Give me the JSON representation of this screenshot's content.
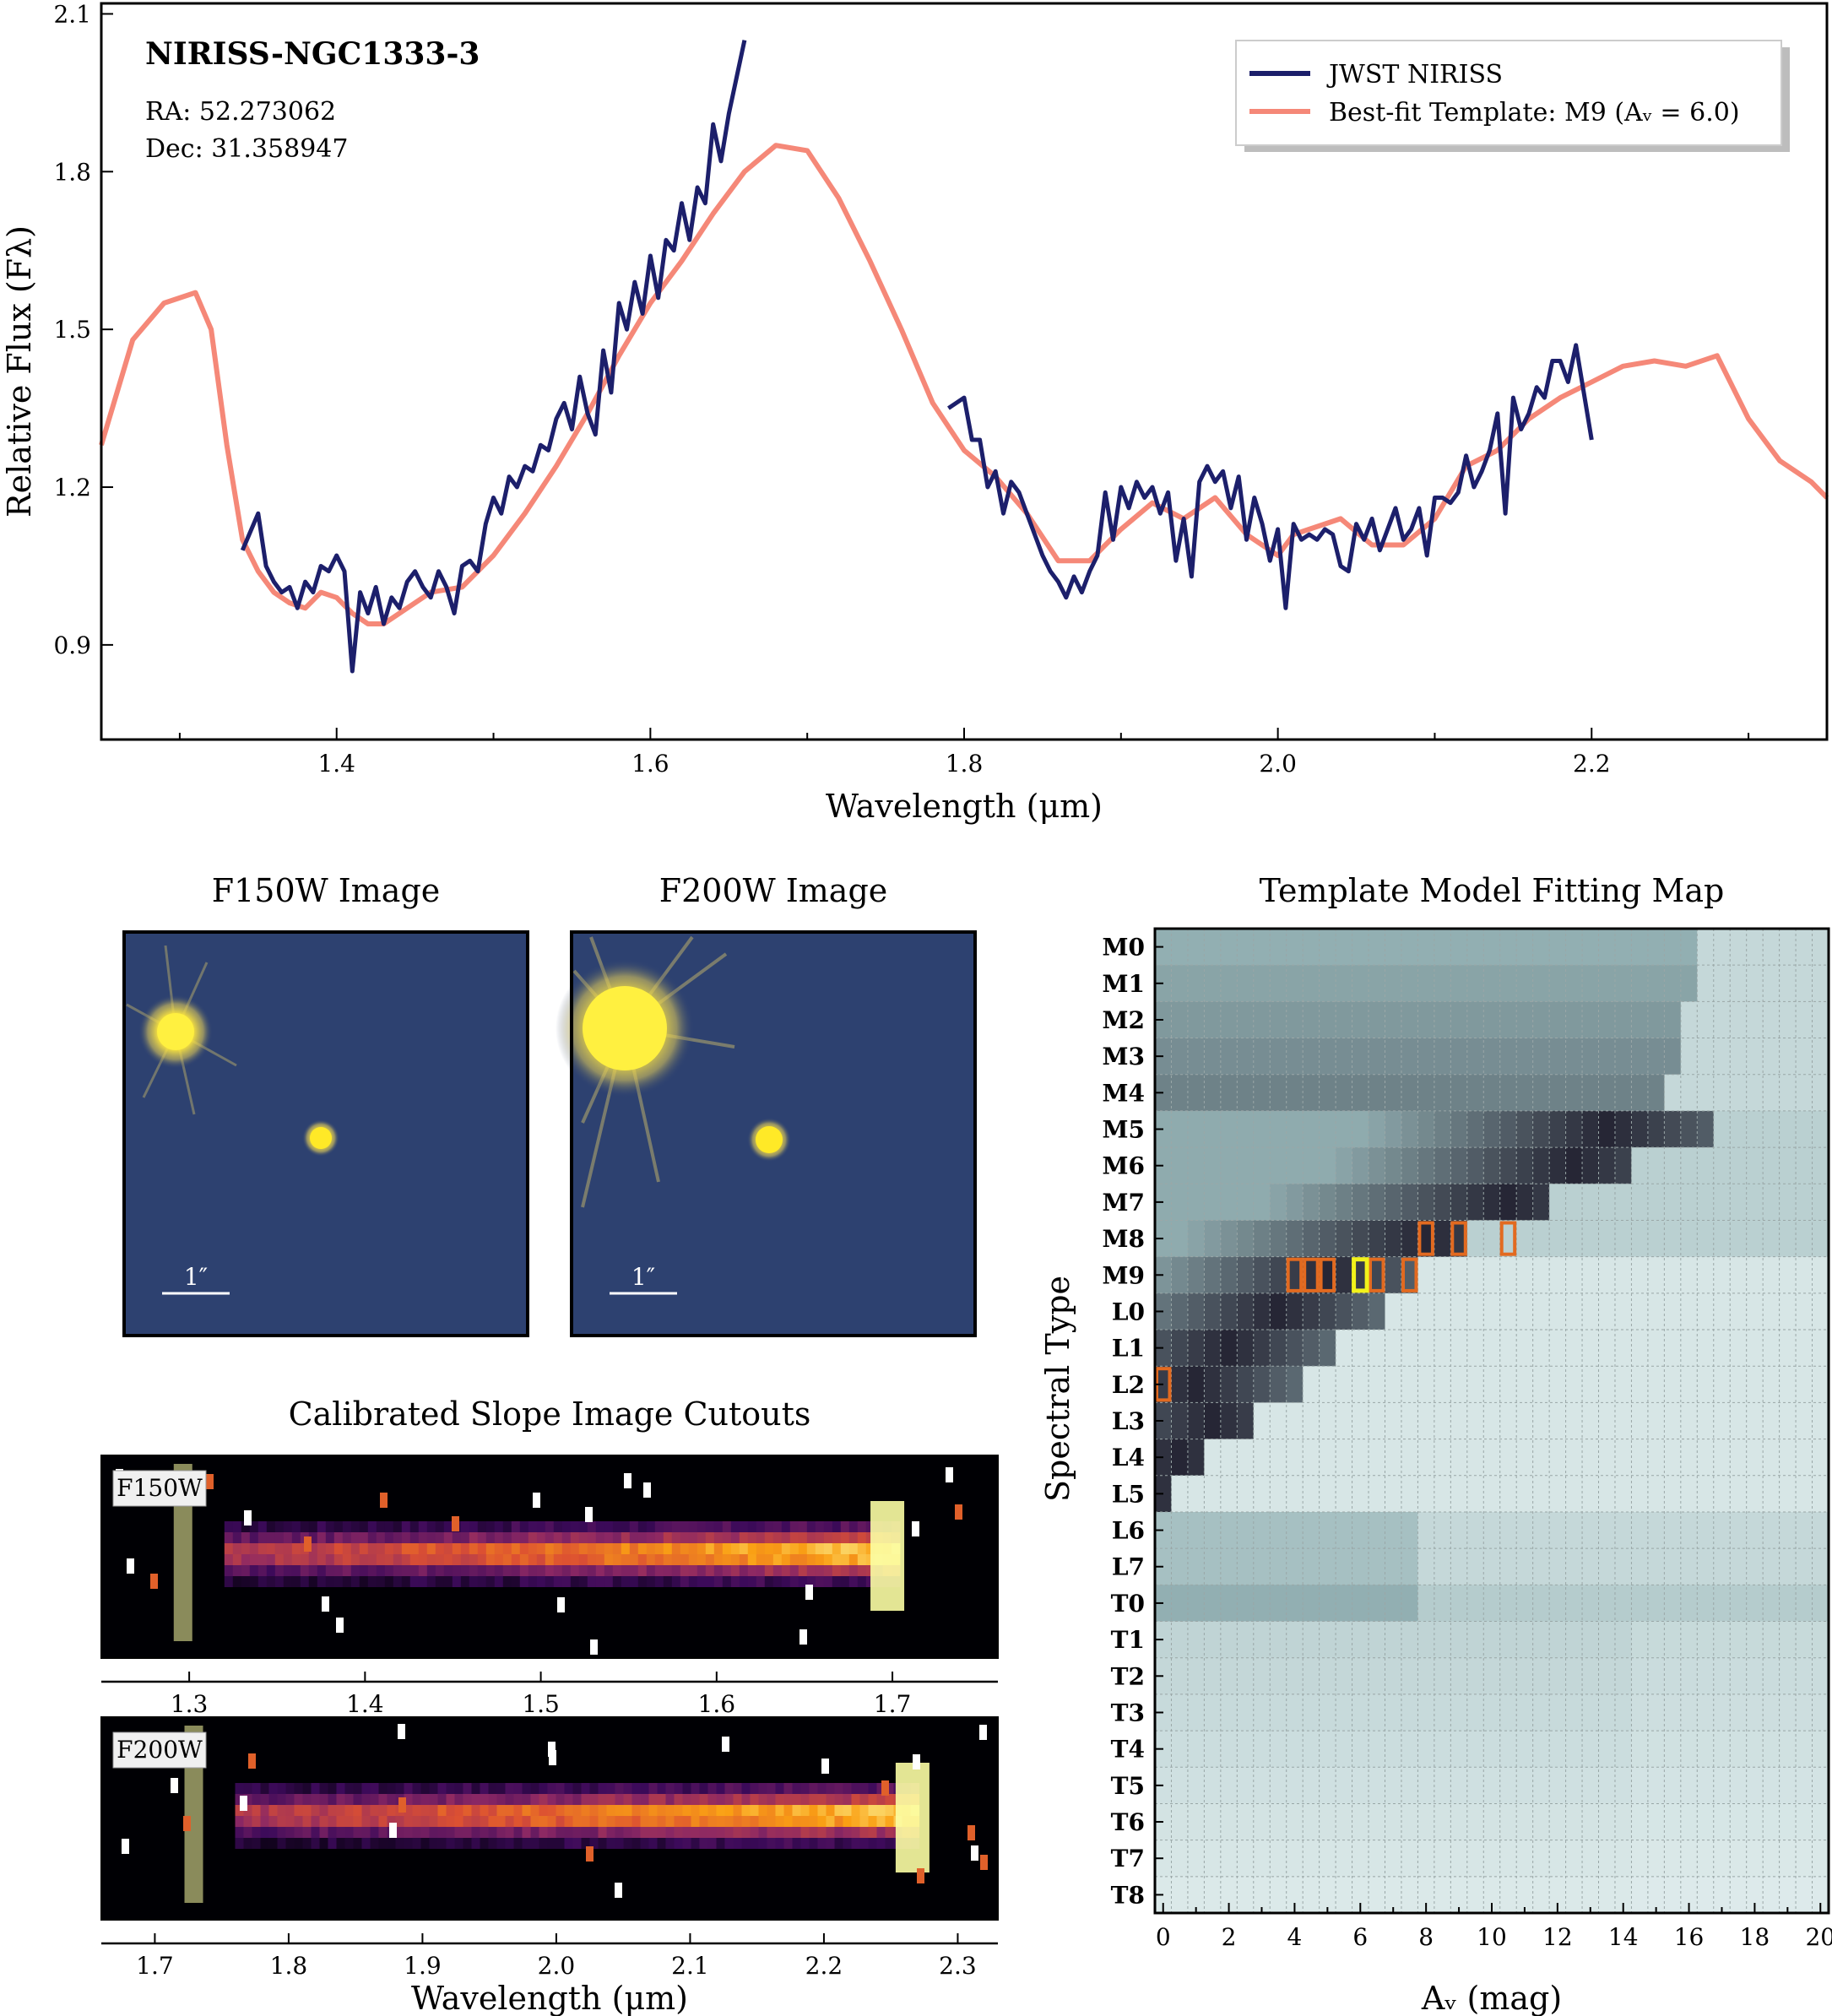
{
  "chart_data": [
    {
      "type": "line",
      "title": "NIRISS-NGC1333-3",
      "annotations": [
        "RA: 52.273062",
        "Dec: 31.358947"
      ],
      "xlabel": "Wavelength (μm)",
      "ylabel": "Relative Flux (Fλ)",
      "xlim": [
        1.25,
        2.35
      ],
      "ylim": [
        0.72,
        2.12
      ],
      "xticks": [
        "1.4",
        "1.6",
        "1.8",
        "2.0",
        "2.2"
      ],
      "yticks": [
        "0.9",
        "1.2",
        "1.5",
        "1.8",
        "2.1"
      ],
      "legend_position": "top-right",
      "series": [
        {
          "name": "JWST NIRISS",
          "color": "#1c1f6b",
          "segments": [
            {
              "x": [
                1.34,
                1.35,
                1.355,
                1.36,
                1.365,
                1.37,
                1.375,
                1.38,
                1.385,
                1.39,
                1.395,
                1.4,
                1.405,
                1.41,
                1.415,
                1.42,
                1.425,
                1.43,
                1.435,
                1.44,
                1.445,
                1.45,
                1.455,
                1.46,
                1.465,
                1.47,
                1.475,
                1.48,
                1.485,
                1.49,
                1.495,
                1.5,
                1.505,
                1.51,
                1.515,
                1.52,
                1.525,
                1.53,
                1.535,
                1.54,
                1.545,
                1.55,
                1.555,
                1.56,
                1.565,
                1.57,
                1.575,
                1.58,
                1.585,
                1.59,
                1.595,
                1.6,
                1.605,
                1.61,
                1.615,
                1.62,
                1.625,
                1.63,
                1.635,
                1.64,
                1.645,
                1.65,
                1.655,
                1.66
              ],
              "y": [
                1.08,
                1.15,
                1.05,
                1.02,
                1.0,
                1.01,
                0.97,
                1.02,
                1.0,
                1.05,
                1.04,
                1.07,
                1.04,
                0.85,
                1.0,
                0.96,
                1.01,
                0.94,
                0.99,
                0.97,
                1.02,
                1.04,
                1.01,
                0.99,
                1.04,
                1.01,
                0.96,
                1.05,
                1.06,
                1.04,
                1.13,
                1.18,
                1.15,
                1.22,
                1.2,
                1.24,
                1.23,
                1.28,
                1.27,
                1.33,
                1.36,
                1.31,
                1.41,
                1.34,
                1.3,
                1.46,
                1.38,
                1.55,
                1.5,
                1.59,
                1.53,
                1.64,
                1.56,
                1.67,
                1.65,
                1.74,
                1.67,
                1.77,
                1.74,
                1.89,
                1.82,
                1.91,
                1.98,
                2.05
              ]
            },
            {
              "x": [
                1.79,
                1.8,
                1.805,
                1.81,
                1.815,
                1.82,
                1.825,
                1.83,
                1.835,
                1.84,
                1.845,
                1.85,
                1.855,
                1.86,
                1.865,
                1.87,
                1.875,
                1.88,
                1.885,
                1.89,
                1.895,
                1.9,
                1.905,
                1.91,
                1.915,
                1.92,
                1.925,
                1.93,
                1.935,
                1.94,
                1.945,
                1.95,
                1.955,
                1.96,
                1.965,
                1.97,
                1.975,
                1.98,
                1.985,
                1.99,
                1.995,
                2.0,
                2.005,
                2.01,
                2.015,
                2.02,
                2.025,
                2.03,
                2.035,
                2.04,
                2.045,
                2.05,
                2.055,
                2.06,
                2.065,
                2.07,
                2.075,
                2.08,
                2.085,
                2.09,
                2.095,
                2.1,
                2.105,
                2.11,
                2.115,
                2.12,
                2.125,
                2.13,
                2.135,
                2.14,
                2.145,
                2.15,
                2.155,
                2.16,
                2.165,
                2.17,
                2.175,
                2.18,
                2.185,
                2.19,
                2.195,
                2.2
              ],
              "y": [
                1.35,
                1.37,
                1.29,
                1.29,
                1.2,
                1.23,
                1.15,
                1.21,
                1.19,
                1.15,
                1.11,
                1.07,
                1.04,
                1.02,
                0.99,
                1.03,
                1.0,
                1.04,
                1.07,
                1.19,
                1.1,
                1.2,
                1.16,
                1.21,
                1.18,
                1.2,
                1.15,
                1.19,
                1.06,
                1.14,
                1.03,
                1.21,
                1.24,
                1.21,
                1.23,
                1.16,
                1.22,
                1.1,
                1.18,
                1.13,
                1.06,
                1.12,
                0.97,
                1.13,
                1.1,
                1.11,
                1.1,
                1.12,
                1.11,
                1.05,
                1.04,
                1.13,
                1.1,
                1.14,
                1.08,
                1.12,
                1.16,
                1.1,
                1.12,
                1.16,
                1.07,
                1.18,
                1.18,
                1.17,
                1.19,
                1.26,
                1.2,
                1.23,
                1.27,
                1.34,
                1.15,
                1.37,
                1.31,
                1.34,
                1.39,
                1.37,
                1.44,
                1.44,
                1.4,
                1.47,
                1.38,
                1.29
              ]
            }
          ]
        },
        {
          "name": "Best-fit Template: M9 (Aᵥ = 6.0)",
          "color": "#f58878",
          "x": [
            1.25,
            1.27,
            1.29,
            1.31,
            1.32,
            1.33,
            1.34,
            1.35,
            1.36,
            1.37,
            1.38,
            1.39,
            1.4,
            1.41,
            1.42,
            1.43,
            1.44,
            1.46,
            1.48,
            1.5,
            1.52,
            1.54,
            1.56,
            1.58,
            1.6,
            1.62,
            1.64,
            1.66,
            1.68,
            1.7,
            1.72,
            1.74,
            1.76,
            1.78,
            1.8,
            1.82,
            1.84,
            1.86,
            1.88,
            1.9,
            1.92,
            1.94,
            1.96,
            1.98,
            2.0,
            2.01,
            2.02,
            2.04,
            2.06,
            2.08,
            2.1,
            2.12,
            2.14,
            2.16,
            2.18,
            2.2,
            2.22,
            2.24,
            2.26,
            2.28,
            2.3,
            2.32,
            2.34,
            2.35
          ],
          "y": [
            1.28,
            1.48,
            1.55,
            1.57,
            1.5,
            1.28,
            1.1,
            1.04,
            1.0,
            0.98,
            0.97,
            1.0,
            0.99,
            0.96,
            0.94,
            0.94,
            0.96,
            1.0,
            1.01,
            1.07,
            1.15,
            1.24,
            1.34,
            1.45,
            1.55,
            1.63,
            1.72,
            1.8,
            1.85,
            1.84,
            1.75,
            1.63,
            1.5,
            1.36,
            1.27,
            1.22,
            1.15,
            1.06,
            1.06,
            1.12,
            1.17,
            1.14,
            1.18,
            1.11,
            1.07,
            1.11,
            1.12,
            1.14,
            1.09,
            1.09,
            1.14,
            1.24,
            1.27,
            1.33,
            1.37,
            1.4,
            1.43,
            1.44,
            1.43,
            1.45,
            1.33,
            1.25,
            1.21,
            1.18
          ]
        }
      ]
    },
    {
      "type": "image",
      "panels": [
        {
          "title": "F150W Image",
          "scalebar": "1″"
        },
        {
          "title": "F200W Image",
          "scalebar": "1″"
        }
      ]
    },
    {
      "type": "heatmap",
      "title": "Calibrated Slope Image Cutouts",
      "panels": [
        {
          "label": "F150W",
          "xlim": [
            1.25,
            1.76
          ],
          "xticks": [
            "1.3",
            "1.4",
            "1.5",
            "1.6",
            "1.7"
          ],
          "trace_start": 1.32,
          "trace_end": 1.7
        },
        {
          "label": "F200W",
          "xlim": [
            1.66,
            2.33
          ],
          "xticks": [
            "1.7",
            "1.8",
            "1.9",
            "2.0",
            "2.1",
            "2.2",
            "2.3"
          ],
          "trace_start": 1.76,
          "trace_end": 2.27
        }
      ],
      "xlabel": "Wavelength (μm)"
    },
    {
      "type": "heatmap",
      "title": "Template Model Fitting Map",
      "xlabel": "Aᵥ (mag)",
      "ylabel": "Spectral Type",
      "xlim": [
        -0.25,
        20.25
      ],
      "xticks": [
        "0",
        "2",
        "4",
        "6",
        "8",
        "10",
        "12",
        "14",
        "16",
        "18",
        "20"
      ],
      "spectral_types": [
        "M0",
        "M1",
        "M2",
        "M3",
        "M4",
        "M5",
        "M6",
        "M7",
        "M8",
        "M9",
        "L0",
        "L1",
        "L2",
        "L3",
        "L4",
        "L5",
        "L6",
        "L7",
        "T0",
        "T1",
        "T2",
        "T3",
        "T4",
        "T5",
        "T6",
        "T7",
        "T8"
      ],
      "best_fit": {
        "type": "M9",
        "av": 6.0
      },
      "good_fits": [
        [
          0.0,
          "L2"
        ],
        [
          4.0,
          "M9"
        ],
        [
          4.5,
          "M9"
        ],
        [
          5.0,
          "M9"
        ],
        [
          6.5,
          "M9"
        ],
        [
          7.5,
          "M9"
        ],
        [
          8.0,
          "M8"
        ],
        [
          9.0,
          "M8"
        ],
        [
          10.5,
          "M8"
        ]
      ]
    }
  ]
}
